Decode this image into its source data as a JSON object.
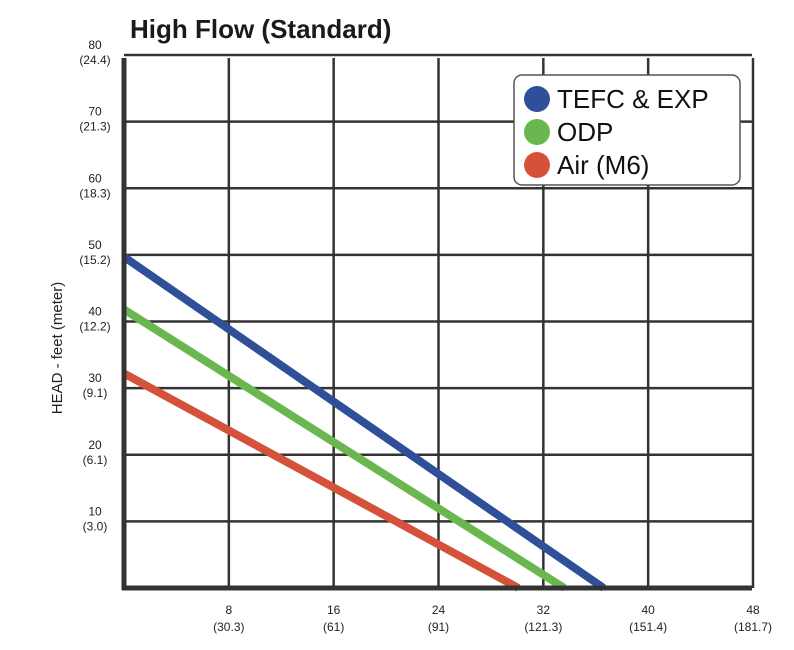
{
  "chart_data": {
    "type": "line",
    "title": "High Flow (Standard)",
    "ylabel": "HEAD - feet (meter)",
    "xlabel": "",
    "xlim": [
      0,
      48
    ],
    "ylim": [
      0,
      80
    ],
    "grid": true,
    "legend_position": "top-right",
    "x_ticks": [
      {
        "value": 8,
        "label": "8",
        "sub": "(30.3)"
      },
      {
        "value": 16,
        "label": "16",
        "sub": "(61)"
      },
      {
        "value": 24,
        "label": "24",
        "sub": "(91)"
      },
      {
        "value": 32,
        "label": "32",
        "sub": "(121.3)"
      },
      {
        "value": 40,
        "label": "40",
        "sub": "(151.4)"
      },
      {
        "value": 48,
        "label": "48",
        "sub": "(181.7)"
      }
    ],
    "y_ticks": [
      {
        "value": 10,
        "label": "10",
        "sub": "(3.0)"
      },
      {
        "value": 20,
        "label": "20",
        "sub": "(6.1)"
      },
      {
        "value": 30,
        "label": "30",
        "sub": "(9.1)"
      },
      {
        "value": 40,
        "label": "40",
        "sub": "(12.2)"
      },
      {
        "value": 50,
        "label": "50",
        "sub": "(15.2)"
      },
      {
        "value": 60,
        "label": "60",
        "sub": "(18.3)"
      },
      {
        "value": 70,
        "label": "70",
        "sub": "(21.3)"
      },
      {
        "value": 80,
        "label": "80",
        "sub": "(24.4)"
      }
    ],
    "series": [
      {
        "name": "TEFC & EXP",
        "color": "#2f4f98",
        "x": [
          0,
          36.6
        ],
        "y": [
          49.7,
          0
        ]
      },
      {
        "name": "ODP",
        "color": "#6ab750",
        "x": [
          0,
          33.6
        ],
        "y": [
          41.8,
          0
        ]
      },
      {
        "name": "Air (M6)",
        "color": "#d5523a",
        "x": [
          0,
          30.1
        ],
        "y": [
          32.2,
          0
        ]
      }
    ]
  }
}
